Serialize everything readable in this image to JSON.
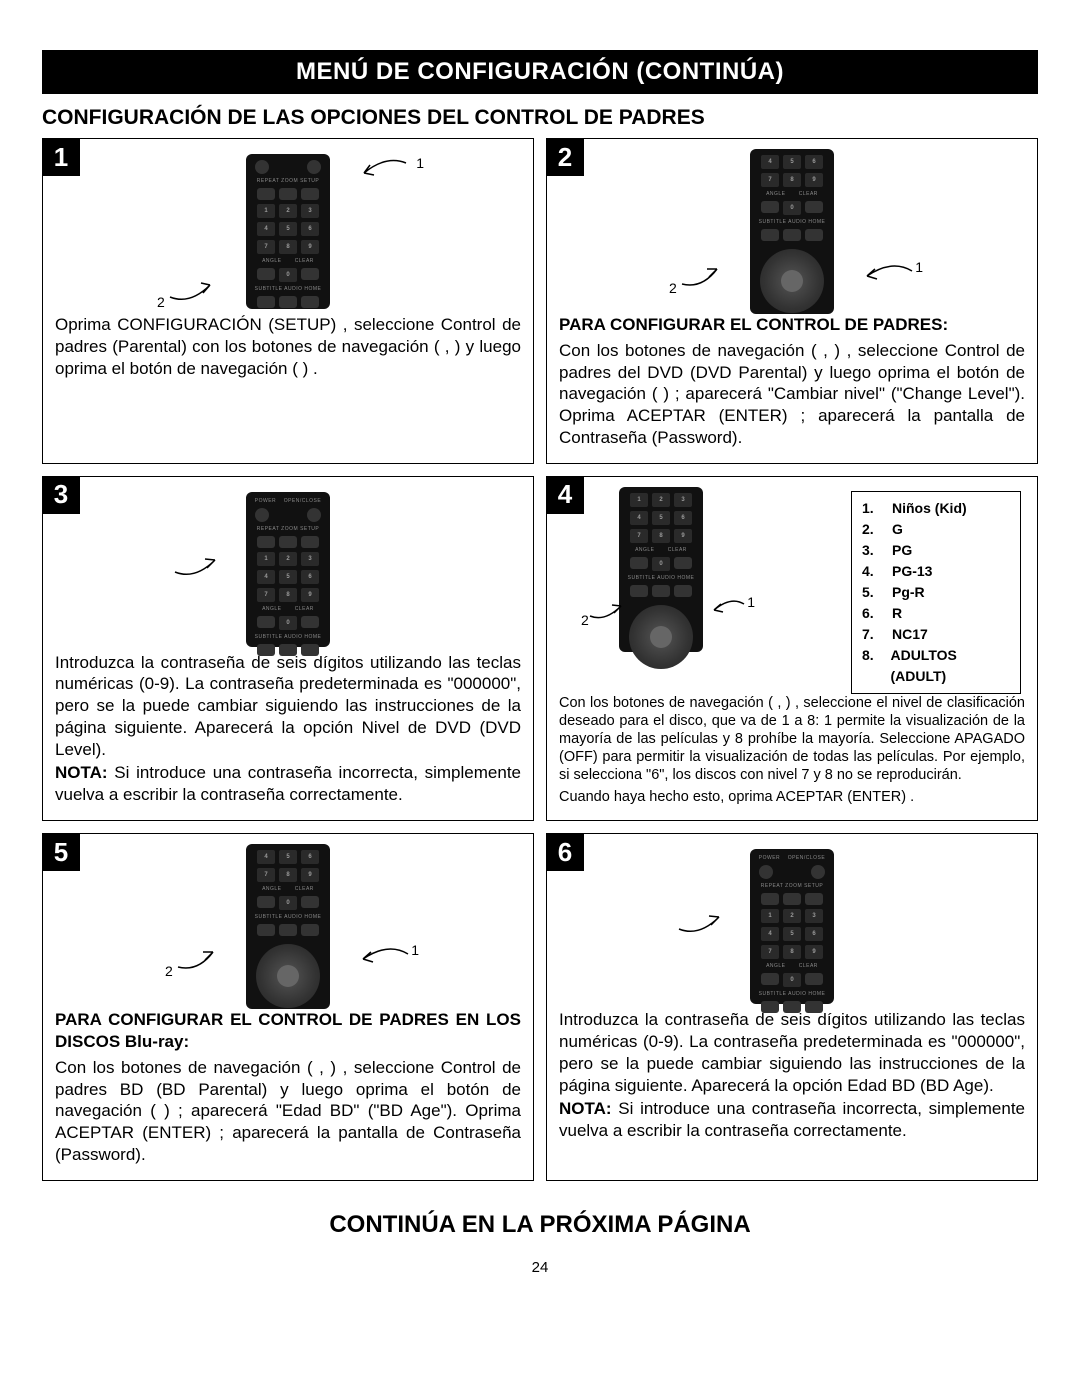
{
  "banner": "MENÚ DE CONFIGURACIÓN (CONTINÚA)",
  "subtitle": "CONFIGURACIÓN DE LAS OPCIONES DEL CONTROL DE PADRES",
  "footer": "CONTINÚA EN LA PRÓXIMA PÁGINA",
  "page_number": "24",
  "panels": {
    "p1": {
      "num": "1",
      "text": "Oprima CONFIGURACIÓN (SETUP)    , seleccione Control de padres (Parental) con los botones de navegación ( ,   )     y luego oprima el botón de navegación ( )    ."
    },
    "p2": {
      "num": "2",
      "heading": "PARA CONFIGURAR EL CONTROL DE PADRES:",
      "text": "Con los botones de navegación (  ,   )   , seleccione Control de padres del DVD (DVD Parental) y luego oprima el botón de navegación (  )   ; aparecerá \"Cambiar nivel\" (\"Change Level\"). Oprima ACEPTAR (ENTER)    ; aparecerá la pantalla de Contraseña (Password)."
    },
    "p3": {
      "num": "3",
      "text": "Introduzca la contraseña de seis dígitos utilizando las teclas numéricas (0-9). La contraseña predeterminada es \"000000\", pero se la puede cambiar siguiendo las instrucciones de la página siguiente. Aparecerá la opción Nivel de DVD (DVD Level).",
      "note_label": "NOTA:",
      "note": " Si introduce una contraseña incorrecta, simplemente vuelva a escribir la contraseña correctamente."
    },
    "p4": {
      "num": "4",
      "ratings": [
        {
          "n": "1.",
          "label": "Niños (Kid)"
        },
        {
          "n": "2.",
          "label": "G"
        },
        {
          "n": "3.",
          "label": "PG"
        },
        {
          "n": "4.",
          "label": "PG-13"
        },
        {
          "n": "5.",
          "label": "Pg-R"
        },
        {
          "n": "6.",
          "label": "R"
        },
        {
          "n": "7.",
          "label": "NC17"
        },
        {
          "n": "8.",
          "label": "ADULTOS (ADULT)"
        }
      ],
      "text": "Con los botones de navegación (  ,   )   , seleccione el nivel de clasificación deseado para el disco, que va de 1 a 8: 1 permite la visualización de la mayoría de las películas y 8 prohíbe la mayoría. Seleccione APAGADO (OFF) para permitir la visualización de todas las películas. Por ejemplo, si selecciona \"6\", los discos con nivel 7 y 8 no se reproducirán.",
      "text2": "Cuando haya hecho esto, oprima ACEPTAR (ENTER)    ."
    },
    "p5": {
      "num": "5",
      "heading": "PARA CONFIGURAR EL CONTROL DE PADRES EN LOS DISCOS Blu-ray:",
      "text": "Con los botones de navegación (  ,   )   , seleccione Control de padres BD (BD Parental) y luego oprima el botón de navegación (  )   ; aparecerá \"Edad BD\" (\"BD Age\"). Oprima ACEPTAR (ENTER)    ; aparecerá la pantalla de Contraseña (Password)."
    },
    "p6": {
      "num": "6",
      "text": "Introduzca la contraseña de seis dígitos utilizando las teclas numéricas (0-9). La contraseña predeterminada es \"000000\", pero se la puede cambiar siguiendo las instrucciones de la página siguiente. Aparecerá la opción Edad BD (BD Age).",
      "note_label": "NOTA:",
      "note": " Si introduce una contraseña incorrecta, simplemente vuelva a escribir la contraseña correctamente."
    }
  }
}
